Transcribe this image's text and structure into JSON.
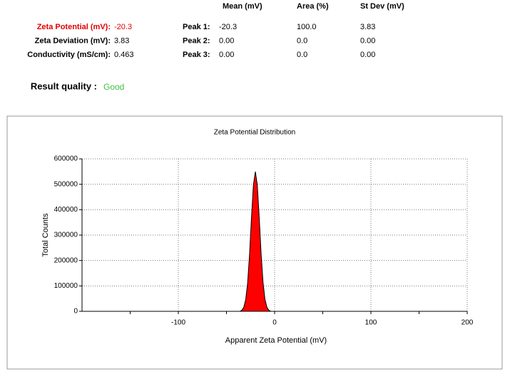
{
  "results": {
    "rows": [
      {
        "label": "Zeta Potential (mV):",
        "value": "-20.3"
      },
      {
        "label": "Zeta Deviation (mV):",
        "value": "3.83"
      },
      {
        "label": "Conductivity (mS/cm):",
        "value": "0.463"
      }
    ],
    "quality_label": "Result quality :",
    "quality": "Good"
  },
  "peaks": {
    "headers": [
      "Mean (mV)",
      "Area (%)",
      "St Dev (mV)"
    ],
    "rows": [
      [
        "Peak 1:",
        "-20.3",
        "100.0",
        "3.83"
      ],
      [
        "Peak 2:",
        "0.00",
        "0.0",
        "0.00"
      ],
      [
        "Peak 3:",
        "0.00",
        "0.0",
        "0.00"
      ]
    ]
  },
  "chart_data": {
    "type": "area",
    "title": "Zeta Potential Distribution",
    "x_label": "Apparent Zeta Potential (mV)",
    "y_label": "Total Counts",
    "x": [
      -36,
      -34,
      -32,
      -30,
      -28,
      -26,
      -24,
      -22,
      -20,
      -18,
      -16,
      -14,
      -12,
      -10,
      -8,
      -6,
      -4
    ],
    "values": [
      0,
      4000,
      16000,
      47000,
      113000,
      226000,
      371000,
      498000,
      550000,
      498000,
      371000,
      226000,
      113000,
      47000,
      16000,
      4000,
      0
    ],
    "color": "#ff0000",
    "xlim": [
      -200,
      200
    ],
    "xticks": [
      -100,
      0,
      100,
      200
    ],
    "xminor_ticks": [
      -150,
      -50,
      50,
      150
    ],
    "ylim": [
      0,
      600000
    ],
    "yticks": [
      0,
      100000,
      200000,
      300000,
      400000,
      500000,
      600000
    ],
    "grid": true
  }
}
